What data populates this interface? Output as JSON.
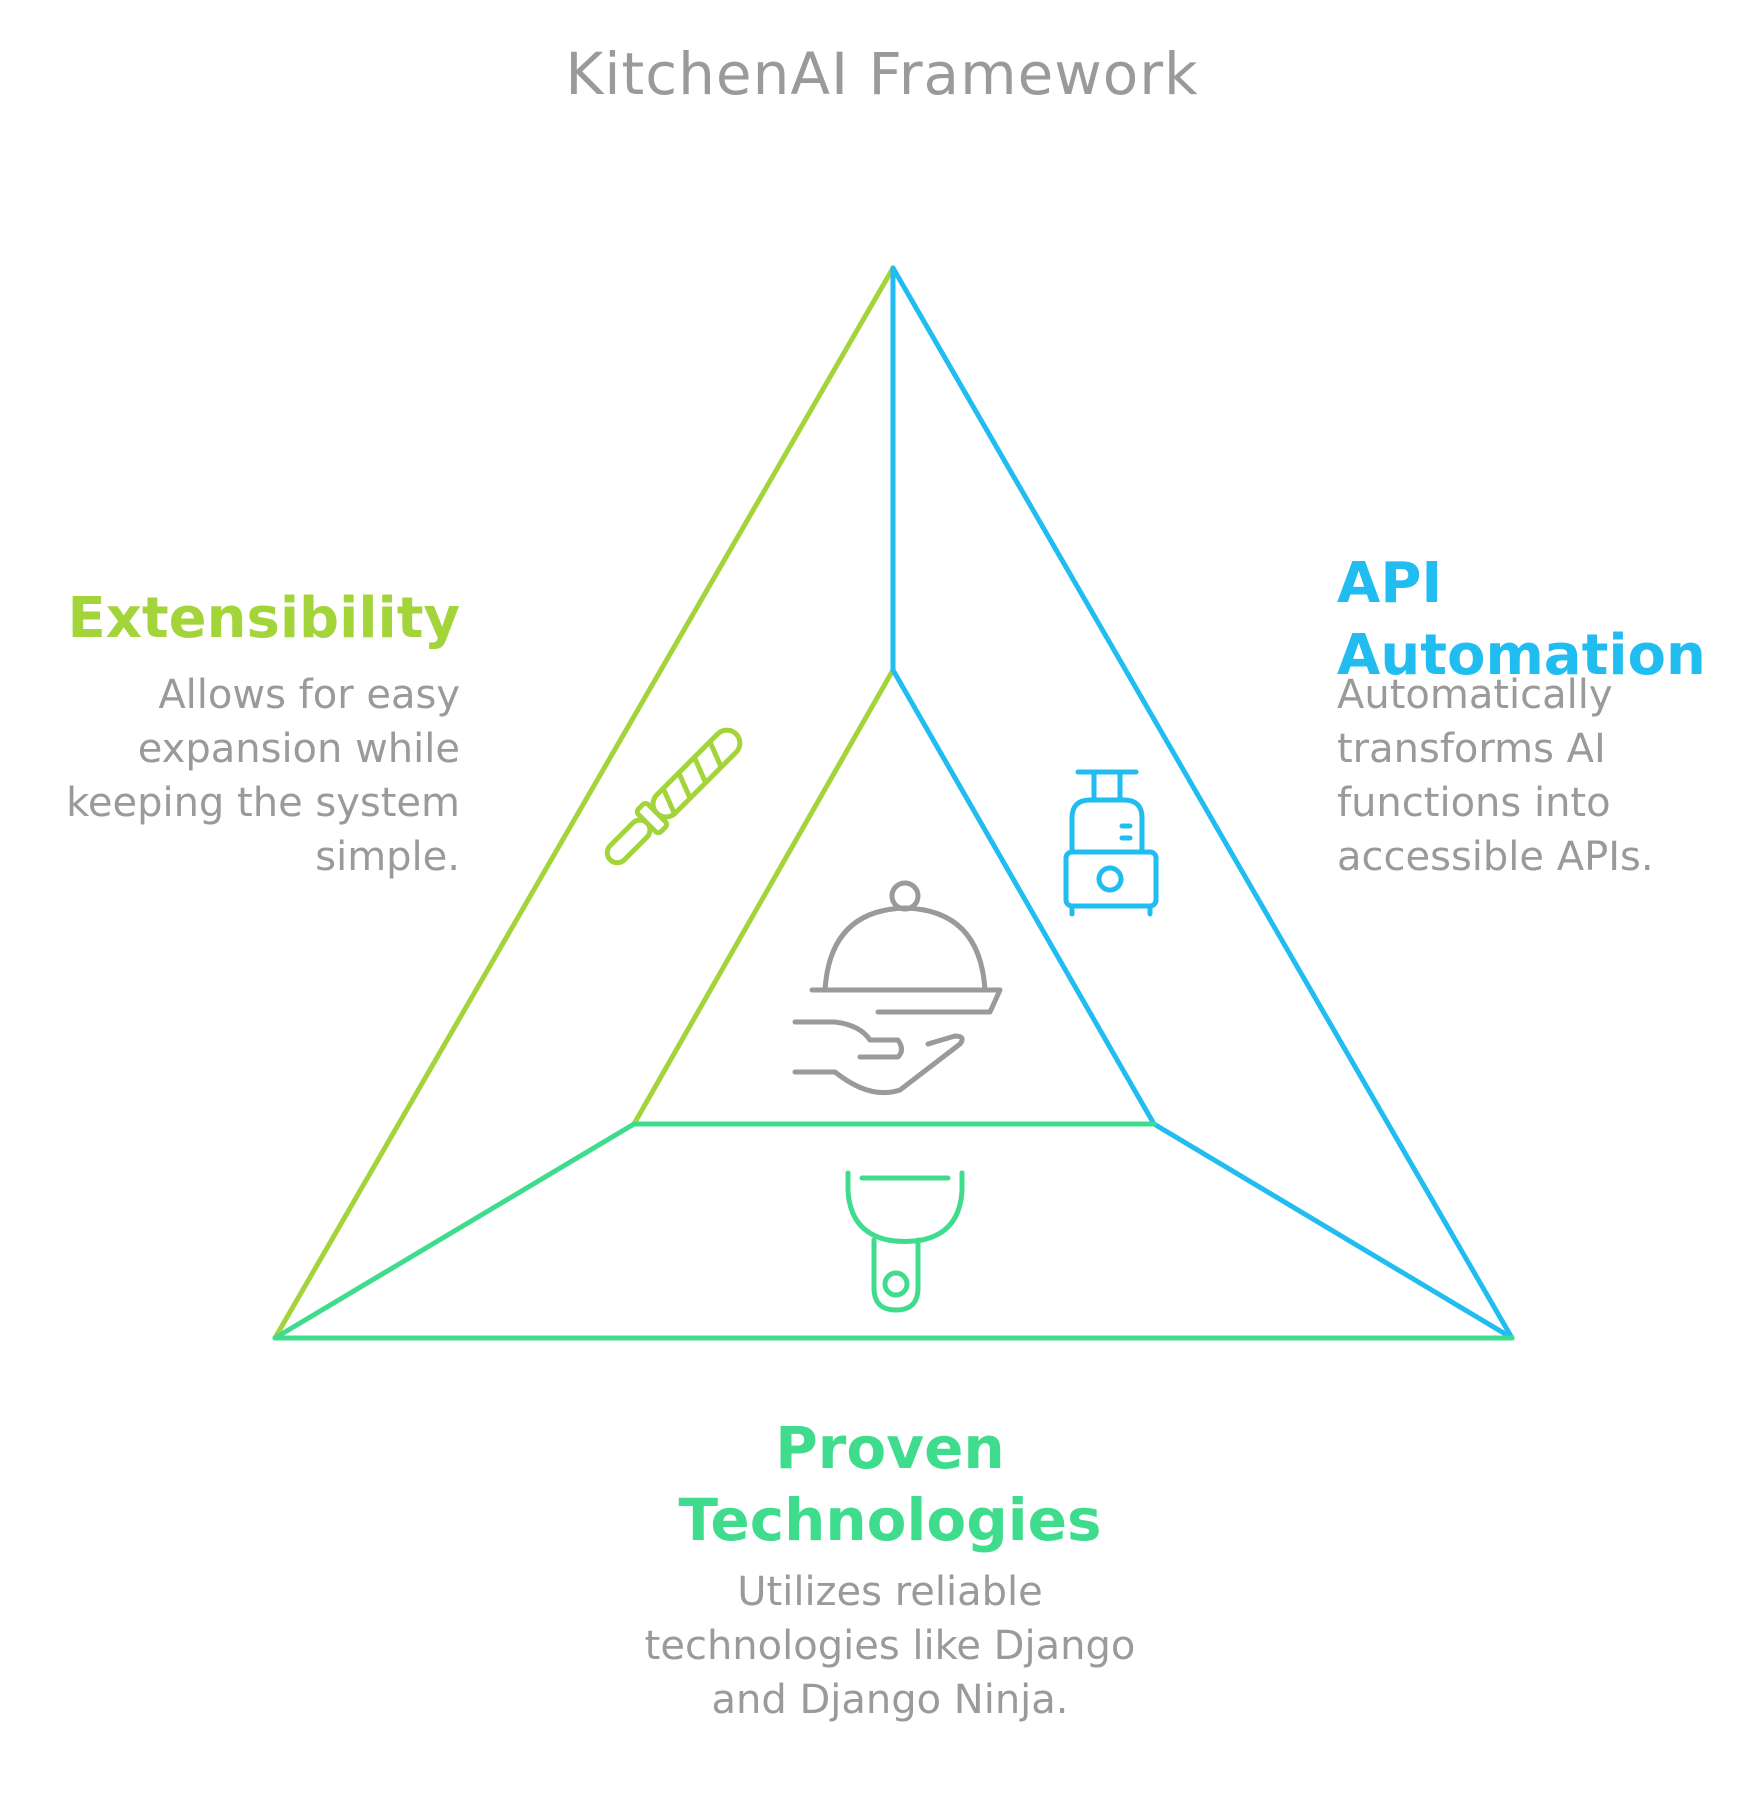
{
  "title": "KitchenAI Framework",
  "colors": {
    "extensibility": "#a3d43a",
    "api_automation": "#22bdf0",
    "proven_technologies": "#40dc8e",
    "text_gray": "#9a9a9a"
  },
  "sections": {
    "extensibility": {
      "heading": "Extensibility",
      "description": "Allows for easy expansion while keeping the system simple.",
      "icon": "knife-sharpener-icon"
    },
    "api_automation": {
      "heading": "API Automation",
      "description": "Automatically transforms AI functions into accessible APIs.",
      "icon": "food-processor-icon"
    },
    "proven_technologies": {
      "heading": "Proven Technologies",
      "description": "Utilizes reliable technologies like Django and Django Ninja.",
      "icon": "peeler-icon"
    }
  },
  "center_icon": "serving-cloche-icon"
}
